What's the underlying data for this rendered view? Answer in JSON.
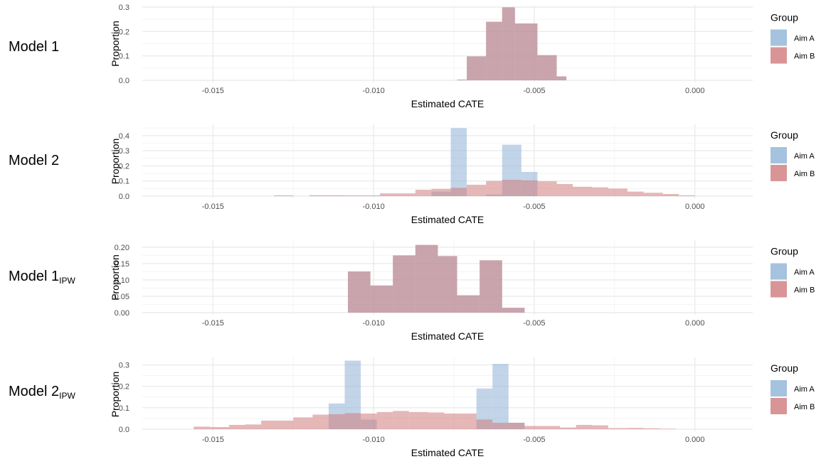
{
  "colors": {
    "aim_a": "#8fb3d6",
    "aim_b": "#d07b7c",
    "overlap": "#a0606e",
    "grid": "#ebebeb"
  },
  "chart_data": [
    {
      "type": "bar",
      "row_label": "Model 1",
      "row_label_sub": "",
      "xlabel": "Estimated CATE",
      "ylabel": "Proportion",
      "xlim": [
        -0.0172,
        0.0018
      ],
      "ylim": [
        0,
        0.3
      ],
      "x_ticks": [
        "-0.015",
        "-0.010",
        "-0.005",
        "0.000"
      ],
      "x_tick_values": [
        -0.015,
        -0.01,
        -0.005,
        0.0
      ],
      "y_ticks": [
        "0.0",
        "0.1",
        "0.2",
        "0.3"
      ],
      "y_tick_values": [
        0.0,
        0.1,
        0.2,
        0.3
      ],
      "grid": true,
      "legend_placement": "right",
      "legend_title": "Group",
      "series": [
        {
          "name": "Aim A",
          "bins": [
            [
              -0.0074,
              -0.0071,
              0.003
            ],
            [
              -0.0071,
              -0.0065,
              0.098
            ],
            [
              -0.0065,
              -0.006,
              0.24
            ],
            [
              -0.006,
              -0.0056,
              0.299
            ],
            [
              -0.0056,
              -0.0049,
              0.233
            ],
            [
              -0.0049,
              -0.0043,
              0.103
            ],
            [
              -0.0043,
              -0.004,
              0.016
            ]
          ]
        },
        {
          "name": "Aim B",
          "bins": [
            [
              -0.0074,
              -0.0071,
              0.003
            ],
            [
              -0.0071,
              -0.0065,
              0.098
            ],
            [
              -0.0065,
              -0.006,
              0.24
            ],
            [
              -0.006,
              -0.0056,
              0.299
            ],
            [
              -0.0056,
              -0.0049,
              0.233
            ],
            [
              -0.0049,
              -0.0043,
              0.103
            ],
            [
              -0.0043,
              -0.004,
              0.016
            ]
          ]
        }
      ]
    },
    {
      "type": "bar",
      "row_label": "Model 2",
      "row_label_sub": "",
      "xlabel": "Estimated CATE",
      "ylabel": "Proportion",
      "xlim": [
        -0.0172,
        0.0018
      ],
      "ylim": [
        0,
        0.46
      ],
      "x_ticks": [
        "-0.015",
        "-0.010",
        "-0.005",
        "0.000"
      ],
      "x_tick_values": [
        -0.015,
        -0.01,
        -0.005,
        0.0
      ],
      "y_ticks": [
        "0.0",
        "0.1",
        "0.2",
        "0.3",
        "0.4"
      ],
      "y_tick_values": [
        0.0,
        0.1,
        0.2,
        0.3,
        0.4
      ],
      "grid": true,
      "legend_placement": "right",
      "legend_title": "Group",
      "series": [
        {
          "name": "Aim A",
          "bins": [
            [
              -0.0082,
              -0.0076,
              0.03
            ],
            [
              -0.0076,
              -0.0071,
              0.45
            ],
            [
              -0.0065,
              -0.006,
              0.01
            ],
            [
              -0.006,
              -0.0054,
              0.34
            ],
            [
              -0.0054,
              -0.0049,
              0.16
            ]
          ]
        },
        {
          "name": "Aim B",
          "bins": [
            [
              -0.0131,
              -0.0125,
              0.005
            ],
            [
              -0.012,
              -0.0114,
              0.006
            ],
            [
              -0.0114,
              -0.0109,
              0.006
            ],
            [
              -0.0109,
              -0.0098,
              0.005
            ],
            [
              -0.0098,
              -0.0087,
              0.018
            ],
            [
              -0.0087,
              -0.0082,
              0.042
            ],
            [
              -0.0082,
              -0.0076,
              0.048
            ],
            [
              -0.0076,
              -0.0071,
              0.055
            ],
            [
              -0.0071,
              -0.0065,
              0.075
            ],
            [
              -0.0065,
              -0.006,
              0.1
            ],
            [
              -0.006,
              -0.0054,
              0.108
            ],
            [
              -0.0054,
              -0.0049,
              0.104
            ],
            [
              -0.0049,
              -0.0043,
              0.098
            ],
            [
              -0.0043,
              -0.0038,
              0.08
            ],
            [
              -0.0038,
              -0.0032,
              0.062
            ],
            [
              -0.0032,
              -0.0027,
              0.058
            ],
            [
              -0.0027,
              -0.0021,
              0.05
            ],
            [
              -0.0021,
              -0.0016,
              0.03
            ],
            [
              -0.0016,
              -0.001,
              0.022
            ],
            [
              -0.001,
              -0.0005,
              0.014
            ],
            [
              -0.0005,
              0.0,
              0.005
            ]
          ]
        }
      ]
    },
    {
      "type": "bar",
      "row_label": "Model 1",
      "row_label_sub": "IPW",
      "xlabel": "Estimated CATE",
      "ylabel": "Proportion",
      "xlim": [
        -0.0172,
        0.0018
      ],
      "ylim": [
        0,
        0.215
      ],
      "x_ticks": [
        "-0.015",
        "-0.010",
        "-0.005",
        "0.000"
      ],
      "x_tick_values": [
        -0.015,
        -0.01,
        -0.005,
        0.0
      ],
      "y_ticks": [
        "0.00",
        "0.05",
        "0.10",
        "0.15",
        "0.20"
      ],
      "y_tick_values": [
        0.0,
        0.05,
        0.1,
        0.15,
        0.2
      ],
      "grid": true,
      "legend_placement": "right",
      "legend_title": "Group",
      "series": [
        {
          "name": "Aim A",
          "bins": [
            [
              -0.0108,
              -0.0101,
              0.126
            ],
            [
              -0.0101,
              -0.0094,
              0.083
            ],
            [
              -0.0094,
              -0.0087,
              0.175
            ],
            [
              -0.0087,
              -0.008,
              0.207
            ],
            [
              -0.008,
              -0.0074,
              0.173
            ],
            [
              -0.0074,
              -0.0067,
              0.053
            ],
            [
              -0.0067,
              -0.006,
              0.16
            ],
            [
              -0.006,
              -0.0053,
              0.015
            ]
          ]
        },
        {
          "name": "Aim B",
          "bins": [
            [
              -0.0108,
              -0.0101,
              0.126
            ],
            [
              -0.0101,
              -0.0094,
              0.083
            ],
            [
              -0.0094,
              -0.0087,
              0.175
            ],
            [
              -0.0087,
              -0.008,
              0.207
            ],
            [
              -0.008,
              -0.0074,
              0.173
            ],
            [
              -0.0074,
              -0.0067,
              0.053
            ],
            [
              -0.0067,
              -0.006,
              0.16
            ],
            [
              -0.006,
              -0.0053,
              0.015
            ]
          ]
        }
      ]
    },
    {
      "type": "bar",
      "row_label": "Model 2",
      "row_label_sub": "IPW",
      "xlabel": "Estimated CATE",
      "ylabel": "Proportion",
      "xlim": [
        -0.0172,
        0.0018
      ],
      "ylim": [
        0,
        0.325
      ],
      "x_ticks": [
        "-0.015",
        "-0.010",
        "-0.005",
        "0.000"
      ],
      "x_tick_values": [
        -0.015,
        -0.01,
        -0.005,
        0.0
      ],
      "y_ticks": [
        "0.0",
        "0.1",
        "0.2",
        "0.3"
      ],
      "y_tick_values": [
        0.0,
        0.1,
        0.2,
        0.3
      ],
      "grid": true,
      "legend_placement": "right",
      "legend_title": "Group",
      "series": [
        {
          "name": "Aim A",
          "bins": [
            [
              -0.0114,
              -0.0109,
              0.12
            ],
            [
              -0.0109,
              -0.0104,
              0.32
            ],
            [
              -0.0104,
              -0.0099,
              0.045
            ],
            [
              -0.0068,
              -0.0063,
              0.19
            ],
            [
              -0.0063,
              -0.0058,
              0.305
            ],
            [
              -0.0058,
              -0.0053,
              0.03
            ]
          ]
        },
        {
          "name": "Aim B",
          "bins": [
            [
              -0.0156,
              -0.0151,
              0.012
            ],
            [
              -0.0151,
              -0.0145,
              0.01
            ],
            [
              -0.0145,
              -0.014,
              0.02
            ],
            [
              -0.014,
              -0.0135,
              0.022
            ],
            [
              -0.0135,
              -0.013,
              0.04
            ],
            [
              -0.013,
              -0.0125,
              0.04
            ],
            [
              -0.0125,
              -0.0119,
              0.055
            ],
            [
              -0.0119,
              -0.0114,
              0.068
            ],
            [
              -0.0114,
              -0.0109,
              0.07
            ],
            [
              -0.0109,
              -0.0104,
              0.075
            ],
            [
              -0.0104,
              -0.0099,
              0.073
            ],
            [
              -0.0099,
              -0.0094,
              0.08
            ],
            [
              -0.0094,
              -0.0089,
              0.085
            ],
            [
              -0.0089,
              -0.0083,
              0.08
            ],
            [
              -0.0083,
              -0.0078,
              0.078
            ],
            [
              -0.0078,
              -0.0073,
              0.073
            ],
            [
              -0.0073,
              -0.0068,
              0.073
            ],
            [
              -0.0068,
              -0.0063,
              0.045
            ],
            [
              -0.0063,
              -0.0058,
              0.03
            ],
            [
              -0.0058,
              -0.0053,
              0.03
            ],
            [
              -0.0053,
              -0.0047,
              0.015
            ],
            [
              -0.0047,
              -0.0042,
              0.015
            ],
            [
              -0.0042,
              -0.0037,
              0.008
            ],
            [
              -0.0037,
              -0.0032,
              0.02
            ],
            [
              -0.0032,
              -0.0027,
              0.018
            ],
            [
              -0.0027,
              -0.0021,
              0.005
            ],
            [
              -0.0021,
              -0.0016,
              0.006
            ],
            [
              -0.0016,
              -0.0011,
              0.004
            ],
            [
              -0.0011,
              -0.0006,
              0.002
            ]
          ]
        }
      ]
    }
  ]
}
